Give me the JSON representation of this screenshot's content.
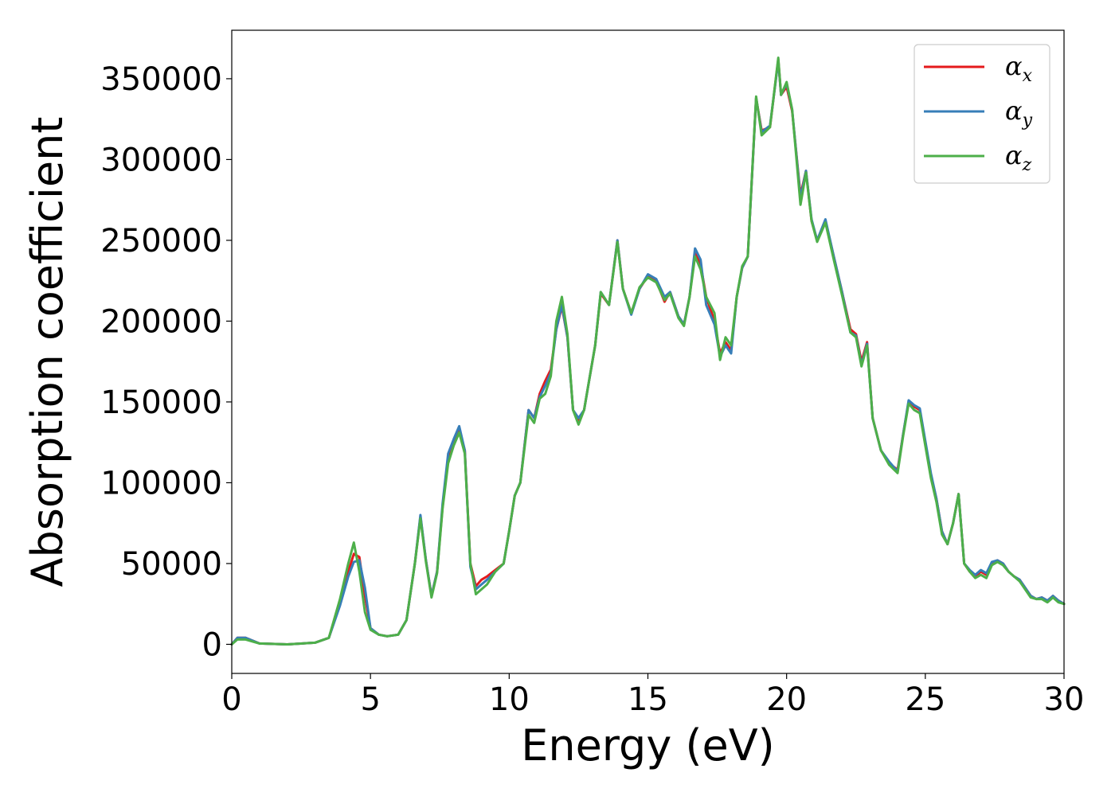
{
  "chart_data": {
    "type": "line",
    "title": "",
    "xlabel": "Energy (eV)",
    "ylabel": "Absorption coefficient",
    "xlim": [
      0,
      30
    ],
    "ylim": [
      -18000,
      380000
    ],
    "xticks": [
      0,
      5,
      10,
      15,
      20,
      25,
      30
    ],
    "xtick_labels": [
      "0",
      "5",
      "10",
      "15",
      "20",
      "25",
      "30"
    ],
    "yticks": [
      0,
      50000,
      100000,
      150000,
      200000,
      250000,
      300000,
      350000
    ],
    "ytick_labels": [
      "0",
      "50000",
      "100000",
      "150000",
      "200000",
      "250000",
      "300000",
      "350000"
    ],
    "grid": false,
    "legend_position": "top-right",
    "series": [
      {
        "name": "αx",
        "symbol": "α",
        "subscript": "x",
        "color": "#e41a1c",
        "x": [
          0,
          0.2,
          0.5,
          1.0,
          2.0,
          3.0,
          3.5,
          3.9,
          4.2,
          4.4,
          4.6,
          4.8,
          5.0,
          5.3,
          5.6,
          6.0,
          6.3,
          6.6,
          6.8,
          7.0,
          7.2,
          7.4,
          7.6,
          7.8,
          8.0,
          8.2,
          8.4,
          8.6,
          8.8,
          9.0,
          9.2,
          9.5,
          9.8,
          10.0,
          10.2,
          10.4,
          10.6,
          10.7,
          10.9,
          11.1,
          11.3,
          11.5,
          11.7,
          11.9,
          12.1,
          12.3,
          12.5,
          12.7,
          12.9,
          13.1,
          13.3,
          13.6,
          13.9,
          14.1,
          14.4,
          14.7,
          15.0,
          15.3,
          15.6,
          15.8,
          16.1,
          16.3,
          16.5,
          16.7,
          16.9,
          17.1,
          17.4,
          17.6,
          17.8,
          18.0,
          18.2,
          18.4,
          18.6,
          18.9,
          19.1,
          19.4,
          19.7,
          19.8,
          20.0,
          20.2,
          20.5,
          20.7,
          20.9,
          21.1,
          21.4,
          21.7,
          22.0,
          22.3,
          22.5,
          22.7,
          22.9,
          23.1,
          23.4,
          23.7,
          24.0,
          24.2,
          24.4,
          24.6,
          24.8,
          25.0,
          25.2,
          25.4,
          25.6,
          25.8,
          26.0,
          26.2,
          26.4,
          26.6,
          26.8,
          27.0,
          27.2,
          27.4,
          27.6,
          27.8,
          28.0,
          28.2,
          28.4,
          28.6,
          28.8,
          29.0,
          29.2,
          29.4,
          29.6,
          29.8,
          30.0
        ],
        "y": [
          0,
          4000,
          4000,
          500,
          0,
          1000,
          4000,
          25000,
          45000,
          56000,
          54000,
          30000,
          10000,
          6000,
          5000,
          6000,
          15000,
          50000,
          79000,
          52000,
          30000,
          45000,
          85000,
          115000,
          125000,
          133000,
          120000,
          50000,
          36000,
          40000,
          42000,
          46000,
          50000,
          70000,
          92000,
          100000,
          130000,
          145000,
          140000,
          155000,
          163000,
          170000,
          195000,
          209000,
          190000,
          145000,
          139000,
          145000,
          165000,
          185000,
          217000,
          210000,
          250000,
          220000,
          205000,
          220000,
          228000,
          225000,
          212000,
          218000,
          203000,
          198000,
          215000,
          243000,
          235000,
          215000,
          200000,
          180000,
          187000,
          182000,
          215000,
          233000,
          240000,
          338000,
          318000,
          320000,
          362000,
          340000,
          345000,
          330000,
          278000,
          293000,
          262000,
          250000,
          262000,
          240000,
          218000,
          195000,
          192000,
          175000,
          187000,
          140000,
          120000,
          112000,
          108000,
          130000,
          150000,
          147000,
          145000,
          125000,
          105000,
          90000,
          70000,
          62000,
          75000,
          93000,
          50000,
          45000,
          42000,
          45000,
          43000,
          50000,
          52000,
          50000,
          45000,
          42000,
          40000,
          35000,
          30000,
          28000,
          29000,
          27000,
          30000,
          27000,
          25000
        ]
      },
      {
        "name": "αy",
        "symbol": "α",
        "subscript": "y",
        "color": "#377eb8",
        "x": [
          0,
          0.2,
          0.5,
          1.0,
          2.0,
          3.0,
          3.5,
          3.9,
          4.2,
          4.4,
          4.6,
          4.8,
          5.0,
          5.3,
          5.6,
          6.0,
          6.3,
          6.6,
          6.8,
          7.0,
          7.2,
          7.4,
          7.6,
          7.8,
          8.0,
          8.2,
          8.4,
          8.6,
          8.8,
          9.0,
          9.2,
          9.5,
          9.8,
          10.0,
          10.2,
          10.4,
          10.6,
          10.7,
          10.9,
          11.1,
          11.3,
          11.5,
          11.7,
          11.9,
          12.1,
          12.3,
          12.5,
          12.7,
          12.9,
          13.1,
          13.3,
          13.6,
          13.9,
          14.1,
          14.4,
          14.7,
          15.0,
          15.3,
          15.6,
          15.8,
          16.1,
          16.3,
          16.5,
          16.7,
          16.9,
          17.1,
          17.4,
          17.6,
          17.8,
          18.0,
          18.2,
          18.4,
          18.6,
          18.9,
          19.1,
          19.4,
          19.7,
          19.8,
          20.0,
          20.2,
          20.5,
          20.7,
          20.9,
          21.1,
          21.4,
          21.7,
          22.0,
          22.3,
          22.5,
          22.7,
          22.9,
          23.1,
          23.4,
          23.7,
          24.0,
          24.2,
          24.4,
          24.6,
          24.8,
          25.0,
          25.2,
          25.4,
          25.6,
          25.8,
          26.0,
          26.2,
          26.4,
          26.6,
          26.8,
          27.0,
          27.2,
          27.4,
          27.6,
          27.8,
          28.0,
          28.2,
          28.4,
          28.6,
          28.8,
          29.0,
          29.2,
          29.4,
          29.6,
          29.8,
          30.0
        ],
        "y": [
          0,
          4000,
          4000,
          500,
          0,
          1000,
          4000,
          24000,
          42000,
          51000,
          52000,
          35000,
          10000,
          6000,
          5000,
          6000,
          15000,
          50000,
          80000,
          52000,
          30000,
          45000,
          87000,
          118000,
          127000,
          135000,
          120000,
          48000,
          34000,
          37000,
          40000,
          45000,
          50000,
          70000,
          92000,
          100000,
          130000,
          145000,
          140000,
          153000,
          160000,
          168000,
          195000,
          210000,
          190000,
          145000,
          140000,
          145000,
          165000,
          185000,
          218000,
          210000,
          250000,
          220000,
          204000,
          220000,
          229000,
          226000,
          215000,
          218000,
          203000,
          198000,
          215000,
          245000,
          238000,
          210000,
          198000,
          178000,
          185000,
          180000,
          215000,
          233000,
          240000,
          338000,
          317000,
          321000,
          361000,
          340000,
          347000,
          331000,
          276000,
          293000,
          263000,
          250000,
          263000,
          240000,
          218000,
          193000,
          191000,
          173000,
          186000,
          140000,
          120000,
          113000,
          107000,
          130000,
          151000,
          148000,
          146000,
          126000,
          106000,
          90000,
          70000,
          62000,
          75000,
          93000,
          50000,
          46000,
          43000,
          46000,
          44000,
          51000,
          52000,
          50000,
          45000,
          42000,
          40000,
          35000,
          30000,
          28000,
          29000,
          27000,
          30000,
          27000,
          25000
        ]
      },
      {
        "name": "αz",
        "symbol": "α",
        "subscript": "z",
        "color": "#4daf4a",
        "x": [
          0,
          0.2,
          0.5,
          1.0,
          2.0,
          3.0,
          3.5,
          3.9,
          4.2,
          4.4,
          4.6,
          4.8,
          5.0,
          5.3,
          5.6,
          6.0,
          6.3,
          6.6,
          6.8,
          7.0,
          7.2,
          7.4,
          7.6,
          7.8,
          8.0,
          8.2,
          8.4,
          8.6,
          8.8,
          9.0,
          9.2,
          9.5,
          9.8,
          10.0,
          10.2,
          10.4,
          10.6,
          10.7,
          10.9,
          11.1,
          11.3,
          11.5,
          11.7,
          11.9,
          12.1,
          12.3,
          12.5,
          12.7,
          12.9,
          13.1,
          13.3,
          13.6,
          13.9,
          14.1,
          14.4,
          14.7,
          15.0,
          15.3,
          15.6,
          15.8,
          16.1,
          16.3,
          16.5,
          16.7,
          16.9,
          17.1,
          17.4,
          17.6,
          17.8,
          18.0,
          18.2,
          18.4,
          18.6,
          18.9,
          19.1,
          19.4,
          19.7,
          19.8,
          20.0,
          20.2,
          20.5,
          20.7,
          20.9,
          21.1,
          21.4,
          21.7,
          22.0,
          22.3,
          22.5,
          22.7,
          22.9,
          23.1,
          23.4,
          23.7,
          24.0,
          24.2,
          24.4,
          24.6,
          24.8,
          25.0,
          25.2,
          25.4,
          25.6,
          25.8,
          26.0,
          26.2,
          26.4,
          26.6,
          26.8,
          27.0,
          27.2,
          27.4,
          27.6,
          27.8,
          28.0,
          28.2,
          28.4,
          28.6,
          28.8,
          29.0,
          29.2,
          29.4,
          29.6,
          29.8,
          30.0
        ],
        "y": [
          0,
          3000,
          3000,
          500,
          0,
          1000,
          4000,
          28000,
          50000,
          63000,
          45000,
          20000,
          9000,
          6000,
          5000,
          6000,
          15000,
          50000,
          78000,
          51000,
          29000,
          44000,
          84000,
          112000,
          123000,
          131000,
          118000,
          50000,
          31000,
          34000,
          37000,
          45000,
          50000,
          70000,
          92000,
          100000,
          128000,
          142000,
          137000,
          152000,
          155000,
          166000,
          200000,
          215000,
          192000,
          145000,
          136000,
          145000,
          165000,
          185000,
          218000,
          210000,
          249000,
          220000,
          205000,
          221000,
          227000,
          224000,
          213000,
          217000,
          202000,
          197000,
          215000,
          240000,
          232000,
          215000,
          205000,
          176000,
          190000,
          185000,
          215000,
          234000,
          240000,
          339000,
          315000,
          320000,
          363000,
          340000,
          348000,
          331000,
          272000,
          292000,
          262000,
          249000,
          261000,
          238000,
          216000,
          193000,
          190000,
          172000,
          185000,
          140000,
          120000,
          111000,
          106000,
          129000,
          149000,
          145000,
          143000,
          123000,
          103000,
          88000,
          68000,
          62000,
          75000,
          93000,
          50000,
          45000,
          41000,
          43000,
          41000,
          49000,
          51000,
          49000,
          45000,
          42000,
          39000,
          34000,
          29000,
          28000,
          28000,
          26000,
          29000,
          26000,
          25000
        ]
      }
    ]
  }
}
